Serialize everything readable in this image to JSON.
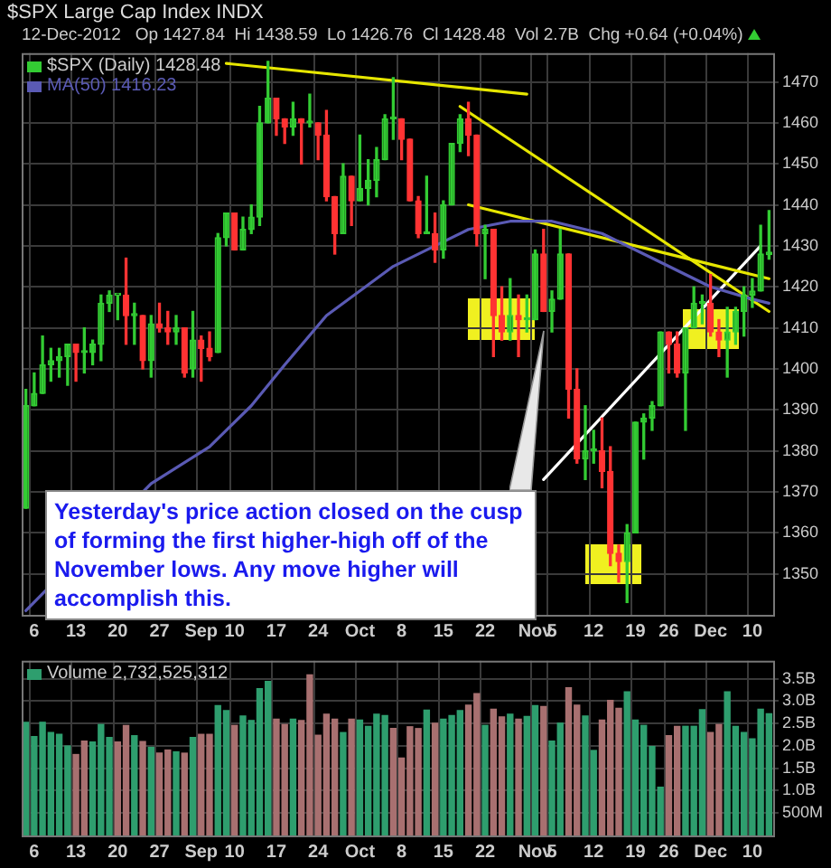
{
  "chart_data": [
    {
      "type": "candlestick",
      "title": "$SPX Large Cap Index INDX",
      "subtitle": "12-Dec-2012   Op 1427.84  Hi 1438.59  Lo 1426.76  Cl 1428.48  Vol 2.7B  Chg +0.64 (+0.04%)",
      "categories": [
        null,
        "6",
        null,
        null,
        null,
        null,
        "13",
        null,
        null,
        null,
        null,
        "20",
        null,
        null,
        null,
        null,
        "27",
        null,
        null,
        null,
        null,
        "Sep",
        null,
        null,
        null,
        "10",
        null,
        null,
        null,
        null,
        "17",
        null,
        null,
        null,
        null,
        "24",
        null,
        null,
        null,
        null,
        "Oct",
        null,
        null,
        null,
        null,
        "8",
        null,
        null,
        null,
        null,
        "15",
        null,
        null,
        null,
        null,
        "22",
        null,
        null,
        null,
        null,
        null,
        "Nov",
        null,
        "5",
        null,
        null,
        null,
        null,
        "12",
        null,
        null,
        null,
        null,
        "19",
        null,
        null,
        null,
        "26",
        null,
        null,
        null,
        null,
        "Dec",
        null,
        null,
        null,
        null,
        "10",
        null,
        null
      ],
      "series": [
        {
          "name": "$SPX (Daily) 1428.48",
          "type": "candlestick",
          "ohlc": [
            [
              1366,
              1395,
              1366,
              1391
            ],
            [
              1391,
              1399,
              1391,
              1394
            ],
            [
              1394,
              1408,
              1394,
              1401
            ],
            [
              1401,
              1405,
              1397,
              1402
            ],
            [
              1402,
              1405,
              1398,
              1403
            ],
            [
              1403,
              1406,
              1396,
              1406
            ],
            [
              1406,
              1406,
              1397,
              1404
            ],
            [
              1404,
              1410,
              1399,
              1404
            ],
            [
              1404,
              1407,
              1401,
              1406
            ],
            [
              1406,
              1418,
              1402,
              1416
            ],
            [
              1416,
              1419,
              1414,
              1418
            ],
            [
              1418,
              1418,
              1412,
              1418
            ],
            [
              1418,
              1427,
              1406,
              1413
            ],
            [
              1413,
              1416,
              1406,
              1413
            ],
            [
              1413,
              1413,
              1400,
              1402
            ],
            [
              1402,
              1413,
              1398,
              1411
            ],
            [
              1411,
              1416,
              1409,
              1410
            ],
            [
              1410,
              1414,
              1406,
              1409
            ],
            [
              1409,
              1413,
              1406,
              1410
            ],
            [
              1410,
              1410,
              1398,
              1399
            ],
            [
              1400,
              1414,
              1398,
              1407
            ],
            [
              1407,
              1408,
              1397,
              1405
            ],
            [
              1405,
              1409,
              1402,
              1403
            ],
            [
              1404,
              1433,
              1404,
              1432
            ],
            [
              1432,
              1438,
              1430,
              1438
            ],
            [
              1438,
              1438,
              1429,
              1429
            ],
            [
              1429,
              1437,
              1429,
              1434
            ],
            [
              1434,
              1440,
              1433,
              1437
            ],
            [
              1437,
              1464,
              1435,
              1460
            ],
            [
              1460,
              1475,
              1460,
              1466
            ],
            [
              1466,
              1466,
              1457,
              1461
            ],
            [
              1461,
              1461,
              1455,
              1459
            ],
            [
              1459,
              1465,
              1457,
              1461
            ],
            [
              1461,
              1461,
              1450,
              1460
            ],
            [
              1460,
              1467,
              1459,
              1460
            ],
            [
              1460,
              1460,
              1451,
              1457
            ],
            [
              1457,
              1463,
              1441,
              1442
            ],
            [
              1442,
              1442,
              1428,
              1433
            ],
            [
              1433,
              1450,
              1433,
              1447
            ],
            [
              1447,
              1447,
              1435,
              1441
            ],
            [
              1441,
              1457,
              1441,
              1444
            ],
            [
              1444,
              1451,
              1440,
              1446
            ],
            [
              1446,
              1454,
              1442,
              1451
            ],
            [
              1451,
              1462,
              1451,
              1461
            ],
            [
              1461,
              1471,
              1456,
              1461
            ],
            [
              1461,
              1461,
              1451,
              1456
            ],
            [
              1456,
              1456,
              1441,
              1441
            ],
            [
              1441,
              1442,
              1432,
              1433
            ],
            [
              1433,
              1447,
              1433,
              1433
            ],
            [
              1433,
              1438,
              1426,
              1429
            ],
            [
              1429,
              1441,
              1427,
              1440
            ],
            [
              1440,
              1455,
              1440,
              1455
            ],
            [
              1455,
              1462,
              1453,
              1461
            ],
            [
              1461,
              1465,
              1452,
              1457
            ],
            [
              1457,
              1457,
              1430,
              1433
            ],
            [
              1433,
              1435,
              1422,
              1434
            ],
            [
              1434,
              1434,
              1403,
              1413
            ],
            [
              1413,
              1420,
              1407,
              1409
            ],
            [
              1409,
              1422,
              1407,
              1413
            ],
            [
              1413,
              1418,
              1403,
              1412
            ],
            [
              1412,
              1418,
              1409,
              1412
            ],
            [
              1412,
              1429,
              1412,
              1428
            ],
            [
              1428,
              1434,
              1414,
              1414
            ],
            [
              1414,
              1419,
              1409,
              1417
            ],
            [
              1417,
              1434,
              1417,
              1428
            ],
            [
              1428,
              1428,
              1388,
              1395
            ],
            [
              1395,
              1400,
              1377,
              1378
            ],
            [
              1378,
              1391,
              1373,
              1380
            ],
            [
              1380,
              1385,
              1377,
              1380
            ],
            [
              1380,
              1388,
              1371,
              1375
            ],
            [
              1375,
              1381,
              1352,
              1355
            ],
            [
              1355,
              1357,
              1348,
              1353
            ],
            [
              1353,
              1362,
              1343,
              1360
            ],
            [
              1360,
              1387,
              1360,
              1387
            ],
            [
              1387,
              1389,
              1378,
              1388
            ],
            [
              1388,
              1392,
              1385,
              1391
            ],
            [
              1391,
              1409,
              1391,
              1409
            ],
            [
              1409,
              1409,
              1399,
              1406
            ],
            [
              1406,
              1409,
              1398,
              1399
            ],
            [
              1399,
              1410,
              1385,
              1410
            ],
            [
              1410,
              1420,
              1410,
              1416
            ],
            [
              1416,
              1418,
              1411,
              1416
            ],
            [
              1416,
              1423,
              1408,
              1409
            ],
            [
              1409,
              1412,
              1403,
              1407
            ],
            [
              1407,
              1415,
              1398,
              1409
            ],
            [
              1409,
              1415,
              1406,
              1414
            ],
            [
              1414,
              1420,
              1408,
              1418
            ],
            [
              1418,
              1422,
              1415,
              1419
            ],
            [
              1419,
              1435,
              1419,
              1428
            ],
            [
              1427.84,
              1438.59,
              1426.76,
              1428.48
            ]
          ],
          "colors": [
            "#33cc33",
            "#33cc33",
            "#33cc33",
            "#33cc33",
            "#33cc33",
            "#33cc33",
            "#ff3333",
            "#33cc33",
            "#33cc33",
            "#33cc33",
            "#33cc33",
            "#33cc33",
            "#ff3333",
            "#33cc33",
            "#ff3333",
            "#33cc33",
            "#ff3333",
            "#ff3333",
            "#33cc33",
            "#ff3333",
            "#33cc33",
            "#ff3333",
            "#ff3333",
            "#33cc33",
            "#33cc33",
            "#ff3333",
            "#33cc33",
            "#33cc33",
            "#33cc33",
            "#33cc33",
            "#ff3333",
            "#ff3333",
            "#33cc33",
            "#ff3333",
            "#33cc33",
            "#ff3333",
            "#ff3333",
            "#ff3333",
            "#33cc33",
            "#ff3333",
            "#33cc33",
            "#33cc33",
            "#33cc33",
            "#33cc33",
            "#33cc33",
            "#ff3333",
            "#ff3333",
            "#ff3333",
            "#33cc33",
            "#ff3333",
            "#33cc33",
            "#33cc33",
            "#33cc33",
            "#ff3333",
            "#ff3333",
            "#33cc33",
            "#ff3333",
            "#ff3333",
            "#33cc33",
            "#ff3333",
            "#33cc33",
            "#33cc33",
            "#ff3333",
            "#33cc33",
            "#33cc33",
            "#ff3333",
            "#ff3333",
            "#33cc33",
            "#33cc33",
            "#ff3333",
            "#ff3333",
            "#ff3333",
            "#33cc33",
            "#33cc33",
            "#33cc33",
            "#33cc33",
            "#33cc33",
            "#ff3333",
            "#ff3333",
            "#33cc33",
            "#33cc33",
            "#33cc33",
            "#ff3333",
            "#ff3333",
            "#33cc33",
            "#33cc33",
            "#33cc33",
            "#33cc33",
            "#33cc33",
            "#33cc33"
          ]
        },
        {
          "name": "MA(50) 1416.23",
          "type": "line",
          "color": "#5a5ab4",
          "values": [
            1341,
            null,
            null,
            null,
            null,
            null,
            null,
            null,
            null,
            null,
            null,
            null,
            null,
            null,
            null,
            1372,
            null,
            null,
            null,
            null,
            null,
            null,
            1381,
            null,
            null,
            null,
            null,
            1391,
            null,
            null,
            null,
            1401,
            null,
            null,
            null,
            null,
            1413,
            null,
            null,
            null,
            null,
            null,
            null,
            null,
            1425,
            null,
            null,
            null,
            null,
            1430,
            null,
            null,
            null,
            1434,
            null,
            null,
            null,
            null,
            1436,
            null,
            null,
            null,
            null,
            1436,
            null,
            null,
            null,
            null,
            null,
            1433,
            null,
            null,
            null,
            null,
            null,
            null,
            1426,
            null,
            null,
            null,
            null,
            null,
            1420,
            null,
            null,
            null,
            null,
            1417,
            null,
            1416
          ]
        },
        {
          "type": "line",
          "color": "#e6e600",
          "values": [
            null,
            null,
            null,
            null,
            null,
            null,
            null,
            null,
            null,
            null,
            null,
            null,
            null,
            null,
            null,
            null,
            null,
            null,
            null,
            null,
            null,
            null,
            null,
            null,
            1474.5,
            null,
            null,
            null,
            null,
            null,
            null,
            null,
            null,
            null,
            null,
            null,
            null,
            null,
            null,
            null,
            null,
            null,
            null,
            null,
            null,
            null,
            null,
            null,
            null,
            null,
            null,
            null,
            null,
            null,
            null,
            null,
            null,
            null,
            null,
            null,
            1467,
            null,
            null,
            null,
            null,
            null,
            null,
            null,
            null,
            null,
            null,
            null,
            null,
            null,
            null,
            null,
            null,
            null,
            null,
            null,
            null,
            null,
            null,
            null,
            null,
            null,
            null,
            null,
            null,
            null
          ]
        },
        {
          "type": "line",
          "color": "#e6e600",
          "values": [
            null,
            null,
            null,
            null,
            null,
            null,
            null,
            null,
            null,
            null,
            null,
            null,
            null,
            null,
            null,
            null,
            null,
            null,
            null,
            null,
            null,
            null,
            null,
            null,
            null,
            null,
            null,
            null,
            null,
            null,
            null,
            null,
            null,
            null,
            null,
            null,
            null,
            null,
            null,
            null,
            null,
            null,
            null,
            null,
            null,
            null,
            null,
            null,
            null,
            null,
            null,
            null,
            1464,
            null,
            null,
            null,
            null,
            null,
            null,
            null,
            null,
            null,
            null,
            null,
            null,
            null,
            null,
            null,
            null,
            null,
            null,
            null,
            null,
            null,
            null,
            null,
            null,
            null,
            null,
            null,
            null,
            null,
            null,
            null,
            null,
            null,
            null,
            null,
            null,
            1414
          ]
        },
        {
          "type": "line",
          "color": "#e6e600",
          "values": [
            null,
            null,
            null,
            null,
            null,
            null,
            null,
            null,
            null,
            null,
            null,
            null,
            null,
            null,
            null,
            null,
            null,
            null,
            null,
            null,
            null,
            null,
            null,
            null,
            null,
            null,
            null,
            null,
            null,
            null,
            null,
            null,
            null,
            null,
            null,
            null,
            null,
            null,
            null,
            null,
            null,
            null,
            null,
            null,
            null,
            null,
            null,
            null,
            null,
            null,
            null,
            null,
            null,
            1440,
            null,
            null,
            null,
            null,
            null,
            null,
            null,
            null,
            null,
            null,
            null,
            null,
            null,
            null,
            null,
            null,
            null,
            null,
            null,
            null,
            null,
            null,
            null,
            null,
            null,
            null,
            null,
            null,
            null,
            null,
            null,
            null,
            null,
            null,
            null,
            1422
          ]
        },
        {
          "type": "line",
          "color": "#ffffff",
          "values": [
            null,
            null,
            null,
            null,
            null,
            null,
            null,
            null,
            null,
            null,
            null,
            null,
            null,
            null,
            null,
            null,
            null,
            null,
            null,
            null,
            null,
            null,
            null,
            null,
            null,
            null,
            null,
            null,
            null,
            null,
            null,
            null,
            null,
            null,
            null,
            null,
            null,
            null,
            null,
            null,
            null,
            null,
            null,
            null,
            null,
            null,
            null,
            null,
            null,
            null,
            null,
            null,
            null,
            null,
            null,
            null,
            null,
            null,
            null,
            null,
            null,
            null,
            1373,
            null,
            null,
            null,
            null,
            null,
            null,
            null,
            null,
            null,
            null,
            null,
            null,
            null,
            null,
            null,
            null,
            null,
            null,
            null,
            null,
            null,
            null,
            null,
            null,
            null,
            1430,
            null
          ]
        }
      ],
      "ylim": [
        1340,
        1477
      ],
      "yticks": [
        1350,
        1360,
        1370,
        1380,
        1390,
        1400,
        1410,
        1420,
        1430,
        1440,
        1450,
        1460,
        1470
      ],
      "grid": true,
      "legend": "top left",
      "annotations": [
        "Yesterday's price action closed on the cusp of forming the first higher-high off of the November lows. Any move higher will accomplish this."
      ]
    },
    {
      "type": "bar",
      "categories": [
        null,
        "6",
        null,
        null,
        null,
        null,
        "13",
        null,
        null,
        null,
        null,
        "20",
        null,
        null,
        null,
        null,
        "27",
        null,
        null,
        null,
        null,
        "Sep",
        null,
        null,
        null,
        "10",
        null,
        null,
        null,
        null,
        "17",
        null,
        null,
        null,
        null,
        "24",
        null,
        null,
        null,
        null,
        "Oct",
        null,
        null,
        null,
        null,
        "8",
        null,
        null,
        null,
        null,
        "15",
        null,
        null,
        null,
        null,
        "22",
        null,
        null,
        null,
        null,
        null,
        "Nov",
        null,
        "5",
        null,
        null,
        null,
        null,
        "12",
        null,
        null,
        null,
        null,
        "19",
        null,
        null,
        null,
        "26",
        null,
        null,
        null,
        null,
        "Dec",
        null,
        null,
        null,
        null,
        "10",
        null,
        null
      ],
      "series": [
        {
          "name": "Volume 2,732,525,312",
          "colors": [
            "#2e9e6e",
            "#2e9e6e",
            "#2e9e6e",
            "#2e9e6e",
            "#2e9e6e",
            "#2e9e6e",
            "#a87070",
            "#a87070",
            "#2e9e6e",
            "#2e9e6e",
            "#2e9e6e",
            "#a87070",
            "#a87070",
            "#2e9e6e",
            "#a87070",
            "#2e9e6e",
            "#a87070",
            "#a87070",
            "#2e9e6e",
            "#a87070",
            "#2e9e6e",
            "#a87070",
            "#a87070",
            "#2e9e6e",
            "#2e9e6e",
            "#a87070",
            "#2e9e6e",
            "#2e9e6e",
            "#2e9e6e",
            "#2e9e6e",
            "#a87070",
            "#a87070",
            "#2e9e6e",
            "#a87070",
            "#a87070",
            "#a87070",
            "#a87070",
            "#a87070",
            "#2e9e6e",
            "#a87070",
            "#2e9e6e",
            "#2e9e6e",
            "#2e9e6e",
            "#2e9e6e",
            "#a87070",
            "#a87070",
            "#a87070",
            "#a87070",
            "#2e9e6e",
            "#a87070",
            "#2e9e6e",
            "#2e9e6e",
            "#2e9e6e",
            "#a87070",
            "#a87070",
            "#2e9e6e",
            "#a87070",
            "#a87070",
            "#2e9e6e",
            "#a87070",
            "#2e9e6e",
            "#2e9e6e",
            "#a87070",
            "#2e9e6e",
            "#2e9e6e",
            "#a87070",
            "#a87070",
            "#2e9e6e",
            "#2e9e6e",
            "#a87070",
            "#a87070",
            "#a87070",
            "#2e9e6e",
            "#2e9e6e",
            "#2e9e6e",
            "#2e9e6e",
            "#2e9e6e",
            "#a87070",
            "#a87070",
            "#2e9e6e",
            "#2e9e6e",
            "#2e9e6e",
            "#a87070",
            "#a87070",
            "#2e9e6e",
            "#2e9e6e",
            "#2e9e6e",
            "#2e9e6e",
            "#2e9e6e",
            "#2e9e6e"
          ],
          "values": [
            2540000000,
            2220000000,
            2540000000,
            2310000000,
            2270000000,
            2010000000,
            1820000000,
            2120000000,
            2100000000,
            2490000000,
            2200000000,
            2100000000,
            2470000000,
            2240000000,
            2110000000,
            1980000000,
            1850000000,
            1920000000,
            1880000000,
            1850000000,
            2200000000,
            2270000000,
            2270000000,
            2910000000,
            2800000000,
            2470000000,
            2680000000,
            2580000000,
            3290000000,
            3450000000,
            2610000000,
            2490000000,
            2610000000,
            2580000000,
            3600000000,
            2250000000,
            2720000000,
            2610000000,
            2310000000,
            2610000000,
            2590000000,
            2450000000,
            2720000000,
            2690000000,
            2400000000,
            1740000000,
            2440000000,
            2400000000,
            2810000000,
            2520000000,
            2610000000,
            2690000000,
            2800000000,
            2920000000,
            3180000000,
            2470000000,
            2830000000,
            2660000000,
            2720000000,
            2610000000,
            2670000000,
            2910000000,
            2890000000,
            2120000000,
            2520000000,
            3310000000,
            2920000000,
            2680000000,
            1910000000,
            2590000000,
            3030000000,
            2850000000,
            3220000000,
            2590000000,
            2470000000,
            2000000000,
            1090000000,
            2240000000,
            2450000000,
            2450000000,
            2450000000,
            2820000000,
            2310000000,
            2490000000,
            3220000000,
            2450000000,
            2310000000,
            2170000000,
            2830000000,
            2732525312
          ]
        }
      ],
      "ylim": [
        0,
        3900000000
      ],
      "yticks": [
        {
          "value": 500000000,
          "label": "500M"
        },
        {
          "value": 1000000000,
          "label": "1.0B"
        },
        {
          "value": 1500000000,
          "label": "1.5B"
        },
        {
          "value": 2000000000,
          "label": "2.0B"
        },
        {
          "value": 2500000000,
          "label": "2.5B"
        },
        {
          "value": 3000000000,
          "label": "3.0B"
        },
        {
          "value": 3500000000,
          "label": "3.5B"
        }
      ],
      "grid": true,
      "legend": "top left"
    }
  ]
}
